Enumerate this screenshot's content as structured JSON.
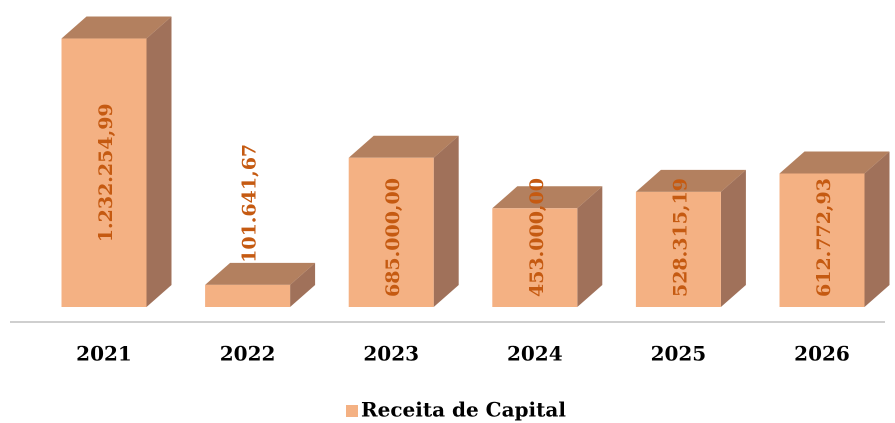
{
  "chart_data": {
    "type": "bar3d",
    "categories": [
      "2021",
      "2022",
      "2023",
      "2024",
      "2025",
      "2026"
    ],
    "series": [
      {
        "name": "Receita de Capital",
        "color": "#f4b183",
        "values": [
          1232254.99,
          101641.67,
          685000.0,
          453000.0,
          528315.19,
          612772.93
        ],
        "value_labels": [
          "1.232.254,99",
          "101.641,67",
          "685.000,00",
          "453.000,00",
          "528.315,19",
          "612.772,93"
        ]
      }
    ],
    "ylim": [
      0,
      1400000
    ],
    "legend": "bottom"
  }
}
